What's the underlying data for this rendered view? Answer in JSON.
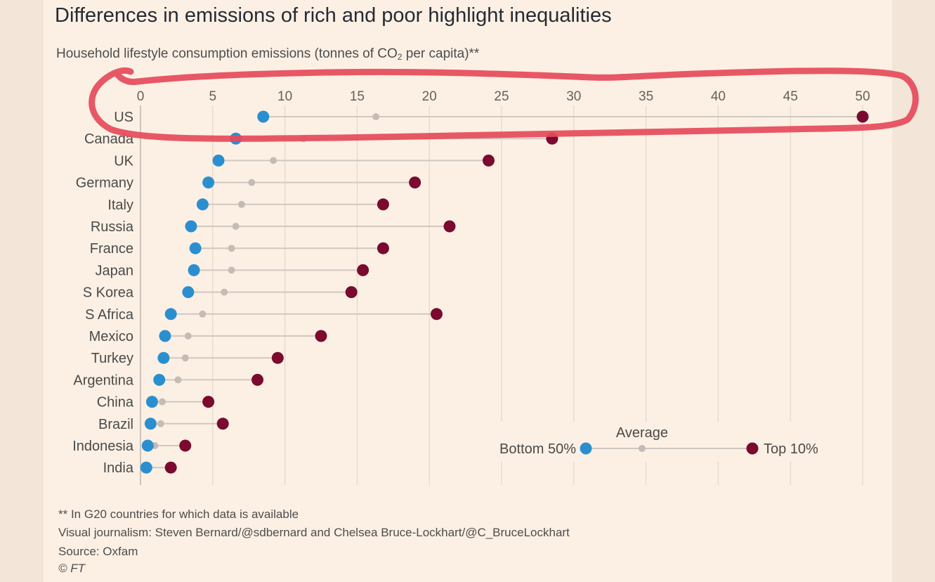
{
  "title": "Differences in emissions of rich and poor highlight inequalities",
  "subtitle": {
    "text": "Household lifestyle consumption emissions (tonnes of CO",
    "subscript": "2",
    "suffix": " per capita)**"
  },
  "footnotes": {
    "note": "** In G20 countries for which data is available",
    "credit": "Visual journalism: Steven Bernard/@sdbernard and Chelsea Bruce-Lockhart/@C_BruceLockhart",
    "source": "Source: Oxfam",
    "copyright": "© FT"
  },
  "colors": {
    "bottom50": "#2b8fcf",
    "average": "#c4bcb5",
    "top10": "#7a0a2e",
    "connector": "#cfc8c1",
    "grid": "#e3d8cd",
    "axis_text": "#66605a",
    "label_text": "#4a4a4a",
    "annotation": "#e64a5a"
  },
  "chart_data": {
    "type": "dot-range",
    "x_axis": {
      "min": 0,
      "max": 50,
      "ticks": [
        0,
        5,
        10,
        15,
        20,
        25,
        30,
        35,
        40,
        45,
        50
      ],
      "position": "top"
    },
    "grid": true,
    "categories": [
      "US",
      "Canada",
      "UK",
      "Germany",
      "Italy",
      "Russia",
      "France",
      "Japan",
      "S Korea",
      "S Africa",
      "Mexico",
      "Turkey",
      "Argentina",
      "China",
      "Brazil",
      "Indonesia",
      "India"
    ],
    "series": [
      {
        "name": "Bottom 50%",
        "values": [
          8.5,
          6.6,
          5.4,
          4.7,
          4.3,
          3.5,
          3.8,
          3.7,
          3.3,
          2.1,
          1.7,
          1.6,
          1.3,
          0.8,
          0.7,
          0.5,
          0.4
        ]
      },
      {
        "name": "Average",
        "values": [
          16.3,
          11.3,
          9.2,
          7.7,
          7.0,
          6.6,
          6.3,
          6.3,
          5.8,
          4.3,
          3.3,
          3.1,
          2.6,
          1.5,
          1.4,
          1.0,
          0.6
        ]
      },
      {
        "name": "Top 10%",
        "values": [
          50.0,
          28.5,
          24.1,
          19.0,
          16.8,
          21.4,
          16.8,
          15.4,
          14.6,
          20.5,
          12.5,
          9.5,
          8.1,
          4.7,
          5.7,
          3.1,
          2.1
        ]
      }
    ],
    "legend": {
      "placement": "bottom-right",
      "labels": {
        "bottom": "Bottom 50%",
        "average": "Average",
        "top": "Top 10%"
      }
    },
    "annotation": "hand-drawn red loop around the x-axis scale and the US row"
  }
}
